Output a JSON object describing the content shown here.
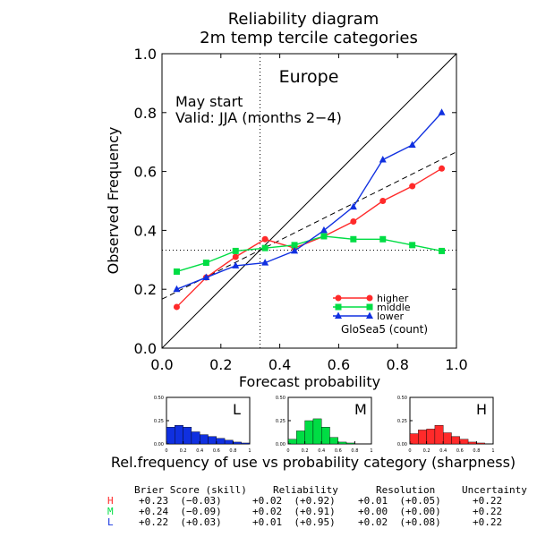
{
  "chart_data": {
    "type": "line",
    "title": "Reliability diagram",
    "subtitle": "2m temp tercile categories",
    "region": "Europe",
    "annotations": [
      "May start",
      "Valid: JJA (months 2−4)"
    ],
    "xlabel": "Forecast probability",
    "ylabel": "Observed Frequency",
    "xlim": [
      0,
      1
    ],
    "ylim": [
      0,
      1
    ],
    "xticks": [
      "0.0",
      "0.2",
      "0.4",
      "0.6",
      "0.8",
      "1.0"
    ],
    "yticks": [
      "0.0",
      "0.2",
      "0.4",
      "0.6",
      "0.8",
      "1.0"
    ],
    "climatology": 0.333,
    "dotted_vline": 0.333,
    "series": [
      {
        "name": "higher",
        "color": "#ff2a2a",
        "marker": "circle",
        "x": [
          0.05,
          0.15,
          0.25,
          0.35,
          0.45,
          0.55,
          0.65,
          0.75,
          0.85,
          0.95
        ],
        "y": [
          0.14,
          0.24,
          0.31,
          0.37,
          0.34,
          0.38,
          0.43,
          0.5,
          0.55,
          0.61
        ]
      },
      {
        "name": "middle",
        "color": "#00dd44",
        "marker": "square",
        "x": [
          0.05,
          0.15,
          0.25,
          0.35,
          0.45,
          0.55,
          0.65,
          0.75,
          0.85,
          0.95
        ],
        "y": [
          0.26,
          0.29,
          0.33,
          0.34,
          0.35,
          0.38,
          0.37,
          0.37,
          0.35,
          0.33
        ]
      },
      {
        "name": "lower",
        "color": "#1030e0",
        "marker": "triangle",
        "x": [
          0.05,
          0.15,
          0.25,
          0.35,
          0.45,
          0.55,
          0.65,
          0.75,
          0.85,
          0.95
        ],
        "y": [
          0.2,
          0.24,
          0.28,
          0.29,
          0.33,
          0.4,
          0.48,
          0.64,
          0.69,
          0.8
        ]
      }
    ],
    "legend_placement": "bottom-right",
    "legend_note": "GloSea5 (count)",
    "sharpness": {
      "caption": "Rel.frequency of use vs probability category (sharpness)",
      "yticks": [
        "0.50",
        "0.25",
        "0.00"
      ],
      "xticks": [
        "0",
        "0.2",
        "0.4",
        "0.6",
        "0.8",
        "1"
      ],
      "ylim": [
        0,
        0.5
      ],
      "panels": [
        {
          "label": "L",
          "color": "#1030e0",
          "values": [
            0.18,
            0.2,
            0.18,
            0.13,
            0.1,
            0.08,
            0.06,
            0.04,
            0.02,
            0.01
          ]
        },
        {
          "label": "M",
          "color": "#00dd44",
          "values": [
            0.05,
            0.14,
            0.25,
            0.27,
            0.18,
            0.07,
            0.02,
            0.01,
            0.0,
            0.0
          ]
        },
        {
          "label": "H",
          "color": "#ff2a2a",
          "values": [
            0.11,
            0.15,
            0.16,
            0.2,
            0.12,
            0.08,
            0.05,
            0.02,
            0.01,
            0.0
          ]
        }
      ]
    }
  },
  "stats": {
    "headers": [
      "Brier Score (skill)",
      "Reliability",
      "Resolution",
      "Uncertainty"
    ],
    "rows": [
      {
        "key": "H",
        "color": "#ff2a2a",
        "brier": "+0.23  (−0.03)",
        "reliability": "+0.02  (+0.92)",
        "resolution": "+0.01  (+0.05)",
        "uncertainty": "+0.22"
      },
      {
        "key": "M",
        "color": "#00dd44",
        "brier": "+0.24  (−0.09)",
        "reliability": "+0.02  (+0.91)",
        "resolution": "+0.00  (+0.00)",
        "uncertainty": "+0.22"
      },
      {
        "key": "L",
        "color": "#1030e0",
        "brier": "+0.22  (+0.03)",
        "reliability": "+0.01  (+0.95)",
        "resolution": "+0.02  (+0.08)",
        "uncertainty": "+0.22"
      }
    ]
  }
}
